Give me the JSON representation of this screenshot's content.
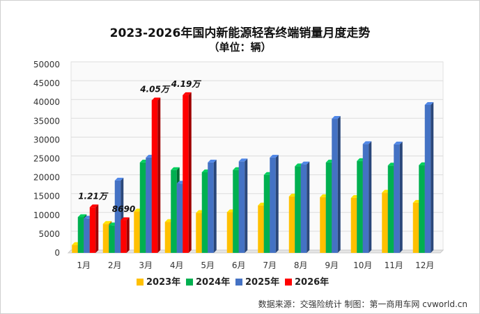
{
  "chart_data": {
    "type": "bar",
    "title": "2023-2026年国内新能源轻客终端销量月度走势",
    "subtitle": "（单位：辆）",
    "categories": [
      "1月",
      "2月",
      "3月",
      "4月",
      "5月",
      "6月",
      "7月",
      "8月",
      "9月",
      "10月",
      "11月",
      "12月"
    ],
    "ylim": [
      0,
      50000
    ],
    "yticks": [
      0,
      5000,
      10000,
      15000,
      20000,
      25000,
      30000,
      35000,
      40000,
      45000,
      50000
    ],
    "grid": true,
    "legend_position": "bottom",
    "series": [
      {
        "name": "2023年",
        "color": "#FFC000",
        "values": [
          2100,
          7700,
          11000,
          8200,
          10600,
          10800,
          12600,
          15000,
          14800,
          14600,
          16000,
          13300
        ]
      },
      {
        "name": "2024年",
        "color": "#00B050",
        "values": [
          9500,
          7300,
          24000,
          22000,
          21400,
          22000,
          20700,
          23000,
          24000,
          24400,
          23200,
          23300
        ]
      },
      {
        "name": "2025年",
        "color": "#4472C4",
        "values": [
          9100,
          19200,
          25300,
          18400,
          24000,
          24300,
          25300,
          23500,
          35600,
          28900,
          28800,
          39300
        ]
      },
      {
        "name": "2026年",
        "color": "#FF0000",
        "values": [
          12100,
          8690,
          40500,
          41900,
          null,
          null,
          null,
          null,
          null,
          null,
          null,
          null
        ]
      }
    ],
    "annotations": [
      {
        "text": "1.21万",
        "series": 3,
        "category": 0
      },
      {
        "text": "8690",
        "series": 3,
        "category": 1
      },
      {
        "text": "4.05万",
        "series": 3,
        "category": 2
      },
      {
        "text": "4.19万",
        "series": 3,
        "category": 3
      }
    ]
  },
  "source_text": "数据来源：交强险统计  制图：第一商用车网 cvworld.cn"
}
